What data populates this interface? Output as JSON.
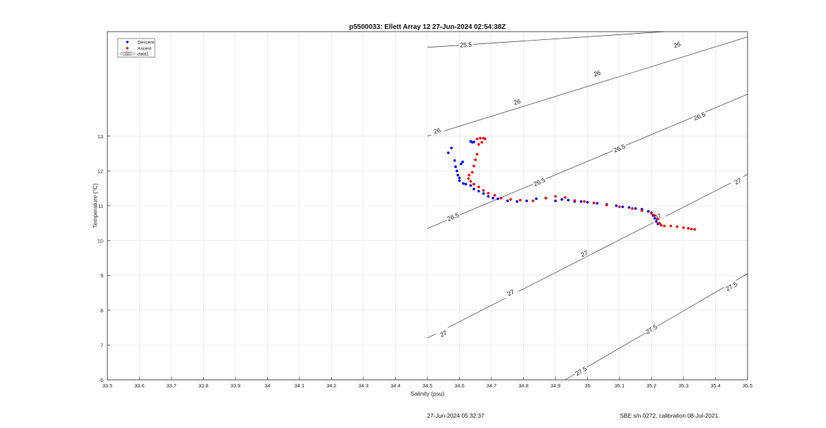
{
  "chart_data": {
    "type": "scatter",
    "title": "p5500033: Ellett Array 12 27-Jun-2024 02:54:38Z",
    "xlabel": "Salinity (psu)",
    "ylabel": "Temperature (°C)",
    "xlim": [
      33.5,
      35.5
    ],
    "ylim": [
      6,
      16
    ],
    "xticks": [
      "33.5",
      "33.6",
      "33.7",
      "33.8",
      "33.9",
      "34",
      "34.1",
      "34.2",
      "34.3",
      "34.4",
      "34.5",
      "34.6",
      "34.7",
      "34.8",
      "34.9",
      "35",
      "35.1",
      "35.2",
      "35.3",
      "35.4",
      "35.5"
    ],
    "yticks": [
      "6",
      "7",
      "8",
      "9",
      "10",
      "11",
      "12",
      "13"
    ],
    "grid": true,
    "legend": {
      "placement": "top-left",
      "entries": [
        "Descent",
        "Ascent",
        "data1"
      ]
    },
    "colors": {
      "descent": "#0000ff",
      "ascent": "#ff0000",
      "contour": "#333333",
      "grid": "#e6e6e6"
    },
    "contours": [
      {
        "level": "25.5",
        "points": [
          [
            34.5,
            15.55
          ],
          [
            35.24,
            16.0
          ]
        ],
        "labels": [
          [
            34.62,
            15.62
          ]
        ]
      },
      {
        "level": "26",
        "points": [
          [
            34.5,
            13.0
          ],
          [
            35.5,
            15.85
          ]
        ],
        "labels": [
          [
            34.53,
            13.15
          ],
          [
            34.78,
            13.98
          ],
          [
            35.03,
            14.8
          ],
          [
            35.28,
            15.62
          ]
        ]
      },
      {
        "level": "26.5",
        "points": [
          [
            34.5,
            10.35
          ],
          [
            35.5,
            14.2
          ]
        ],
        "labels": [
          [
            34.58,
            10.68
          ],
          [
            34.85,
            11.68
          ],
          [
            35.1,
            12.65
          ],
          [
            35.35,
            13.57
          ]
        ]
      },
      {
        "level": "27",
        "points": [
          [
            34.5,
            7.2
          ],
          [
            35.5,
            11.9
          ]
        ],
        "labels": [
          [
            34.55,
            7.32
          ],
          [
            34.76,
            8.5
          ],
          [
            34.99,
            9.62
          ],
          [
            35.22,
            10.68
          ],
          [
            35.47,
            11.7
          ]
        ]
      },
      {
        "level": "27.5",
        "points": [
          [
            34.93,
            6.0
          ],
          [
            35.5,
            9.05
          ]
        ],
        "labels": [
          [
            34.98,
            6.25
          ],
          [
            35.2,
            7.45
          ],
          [
            35.45,
            8.68
          ]
        ]
      }
    ],
    "series": [
      {
        "name": "Descent",
        "x": [
          34.565,
          34.575,
          34.585,
          34.588,
          34.592,
          34.595,
          34.6,
          34.605,
          34.61,
          34.62,
          34.635,
          34.645,
          34.66,
          34.675,
          34.69,
          34.705,
          34.72,
          34.75,
          34.78,
          34.81,
          34.84,
          34.87,
          34.9,
          34.92,
          34.94,
          34.96,
          34.98,
          35.0,
          35.03,
          35.06,
          35.09,
          35.11,
          35.13,
          35.15,
          35.17,
          35.19,
          35.2,
          35.205,
          35.21,
          35.215,
          35.22,
          34.635,
          34.64,
          34.645,
          34.6,
          34.612
        ],
        "y": [
          12.52,
          12.66,
          12.3,
          12.12,
          12.0,
          11.88,
          11.8,
          12.2,
          12.26,
          11.62,
          11.58,
          11.48,
          11.42,
          11.35,
          11.27,
          11.22,
          11.2,
          11.14,
          11.12,
          11.14,
          11.2,
          11.22,
          11.14,
          11.18,
          11.16,
          11.12,
          11.12,
          11.1,
          11.07,
          11.04,
          11.0,
          10.97,
          10.95,
          10.92,
          10.9,
          10.84,
          10.8,
          10.72,
          10.64,
          10.55,
          10.48,
          12.85,
          12.82,
          12.83,
          11.72,
          11.64
        ],
        "marker": "dot"
      },
      {
        "name": "Ascent",
        "x": [
          34.655,
          34.665,
          34.675,
          34.68,
          34.67,
          34.66,
          34.655,
          34.65,
          34.645,
          34.64,
          34.63,
          34.628,
          34.635,
          34.645,
          34.66,
          34.675,
          34.69,
          34.71,
          34.73,
          34.76,
          34.79,
          34.83,
          34.87,
          34.9,
          34.93,
          34.96,
          34.99,
          35.02,
          35.06,
          35.1,
          35.14,
          35.17,
          35.2,
          35.21,
          35.22,
          35.225,
          35.23,
          35.24,
          35.26,
          35.28,
          35.3,
          35.315,
          35.325,
          35.335
        ],
        "y": [
          12.92,
          12.94,
          12.94,
          12.92,
          12.82,
          12.76,
          12.48,
          12.32,
          12.14,
          11.96,
          11.88,
          11.78,
          11.7,
          11.62,
          11.54,
          11.44,
          11.36,
          11.3,
          11.22,
          11.18,
          11.16,
          11.14,
          11.22,
          11.27,
          11.24,
          11.15,
          11.12,
          11.08,
          11.02,
          10.97,
          10.92,
          10.86,
          10.78,
          10.72,
          10.62,
          10.5,
          10.44,
          10.42,
          10.42,
          10.4,
          10.37,
          10.35,
          10.33,
          10.32
        ],
        "marker": "dot"
      }
    ]
  },
  "footer": {
    "date": "27-Jun-2024 05:32:37",
    "calibration": "SBE s/n 0272, calibration 08-Jul-2021"
  }
}
